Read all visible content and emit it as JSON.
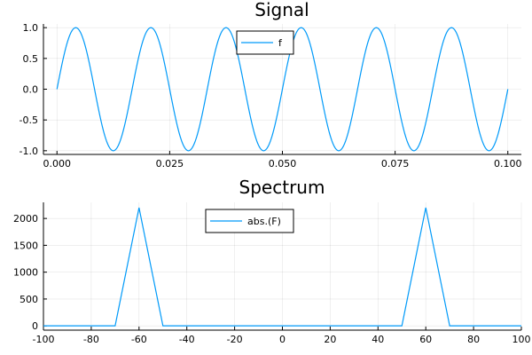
{
  "chart_data": [
    {
      "type": "line",
      "title": "Signal",
      "xlabel": "",
      "ylabel": "",
      "xlim": [
        -0.003,
        0.103
      ],
      "ylim": [
        -1.06,
        1.06
      ],
      "xticks": [
        0.0,
        0.025,
        0.05,
        0.075,
        0.1
      ],
      "xtick_labels": [
        "0.000",
        "0.025",
        "0.050",
        "0.075",
        "0.100"
      ],
      "yticks": [
        -1.0,
        -0.5,
        0.0,
        0.5,
        1.0
      ],
      "ytick_labels": [
        "-1.0",
        "-0.5",
        "0.0",
        "0.5",
        "1.0"
      ],
      "grid": true,
      "legend_position": "top-center",
      "series": [
        {
          "name": "f",
          "color": "#009af9",
          "function": "sin(2*pi*60*t)",
          "frequency": 60,
          "x_range": [
            0.0,
            0.1
          ]
        }
      ]
    },
    {
      "type": "line",
      "title": "Spectrum",
      "xlabel": "",
      "ylabel": "",
      "xlim": [
        -100,
        100
      ],
      "ylim": [
        -80,
        2300
      ],
      "xticks": [
        -100,
        -80,
        -60,
        -40,
        -20,
        0,
        20,
        40,
        60,
        80,
        100
      ],
      "xtick_labels": [
        "-100",
        "-80",
        "-60",
        "-40",
        "-20",
        "0",
        "20",
        "40",
        "60",
        "80",
        "100"
      ],
      "yticks": [
        0,
        500,
        1000,
        1500,
        2000
      ],
      "ytick_labels": [
        "0",
        "500",
        "1000",
        "1500",
        "2000"
      ],
      "grid": true,
      "legend_position": "top-center",
      "series": [
        {
          "name": "abs.(F)",
          "color": "#009af9",
          "x": [
            -100,
            -70,
            -60,
            -50,
            50,
            60,
            70,
            100
          ],
          "y": [
            0,
            0,
            2200,
            0,
            0,
            2200,
            0,
            0
          ]
        }
      ]
    }
  ]
}
